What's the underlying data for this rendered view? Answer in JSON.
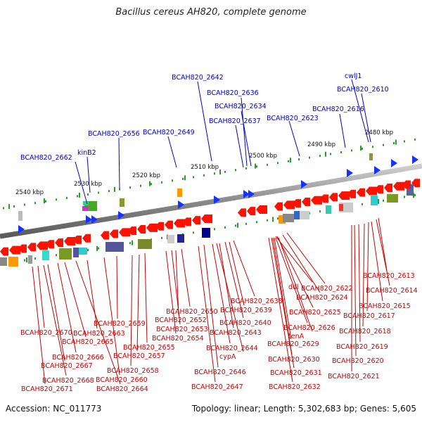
{
  "title": "Bacillus cereus AH820, complete genome",
  "footer": {
    "accession": "Accession: NC_011773",
    "summary": "Topology: linear; Length: 5,302,683 bp; Genes: 5,605"
  },
  "colors": {
    "forward_label": "#0000cc",
    "reverse_label": "#cc0000",
    "forward_gene": "#1533ff",
    "reverse_gene": "#ff1100",
    "axis": "#888888",
    "ticks": "#2a9a2a"
  },
  "scale_labels": [
    "2480 kbp",
    "2490 kbp",
    "2500 kbp",
    "2510 kbp",
    "2520 kbp",
    "2530 kbp",
    "2540 kbp"
  ],
  "forward_labels": [
    "cwlJ1",
    "BCAH820_2610",
    "BCAH820_2616",
    "BCAH820_2623",
    "BCAH820_2634",
    "BCAH820_2636",
    "BCAH820_2637",
    "BCAH820_2642",
    "BCAH820_2649",
    "BCAH820_2656",
    "kinB2",
    "BCAH820_2662"
  ],
  "reverse_labels": [
    "BCAH820_2613",
    "BCAH820_2614",
    "BCAH820_2615",
    "BCAH820_2617",
    "BCAH820_2618",
    "BCAH820_2619",
    "BCAH820_2620",
    "BCAH820_2621",
    "ddl",
    "BCAH820_2622",
    "BCAH820_2624",
    "BCAH820_2625",
    "tenA",
    "BCAH820_2626",
    "BCAH820_2629",
    "BCAH820_2630",
    "BCAH820_2631",
    "BCAH820_2632",
    "BCAH820_2638",
    "BCAH820_2639",
    "BCAH820_2640",
    "BCAH820_2643",
    "cypA",
    "BCAH820_2644",
    "BCAH820_2646",
    "BCAH820_2647",
    "BCAH820_2650",
    "BCAH820_2652",
    "BCAH820_2653",
    "BCAH820_2654",
    "BCAH820_2655",
    "BCAH820_2657",
    "BCAH820_2658",
    "BCAH820_2659",
    "BCAH820_2660",
    "BCAH820_2663",
    "BCAH820_2664",
    "BCAH820_2665",
    "BCAH820_2666",
    "BCAH820_2667",
    "BCAH820_2668",
    "BCAH820_2670",
    "BCAH820_2671"
  ]
}
